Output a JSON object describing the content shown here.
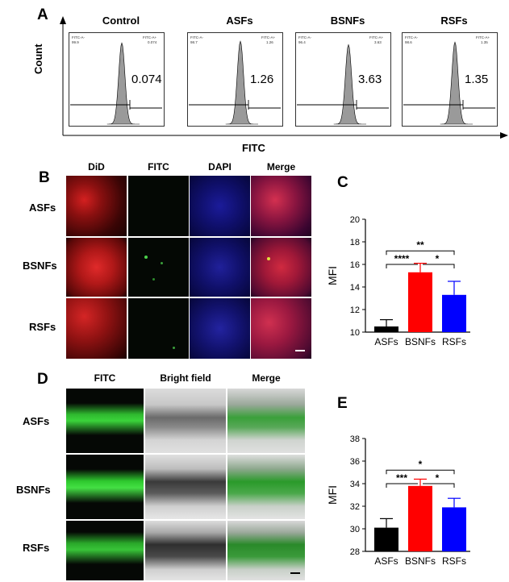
{
  "panel_a": {
    "letter": "A",
    "ylabel": "Count",
    "xlabel": "FITC",
    "gate_left": "FITC-A-",
    "gate_right": "FITC-A+",
    "histograms": [
      {
        "title": "Control",
        "neg": "99.9",
        "pos": "0.074",
        "value": "0.074"
      },
      {
        "title": "ASFs",
        "neg": "98.7",
        "pos": "1.26",
        "value": "1.26"
      },
      {
        "title": "BSNFs",
        "neg": "96.4",
        "pos": "3.63",
        "value": "3.63"
      },
      {
        "title": "RSFs",
        "neg": "98.6",
        "pos": "1.35",
        "value": "1.35"
      }
    ]
  },
  "panel_b": {
    "letter": "B",
    "columns": [
      "DiD",
      "FITC",
      "DAPI",
      "Merge"
    ],
    "rows": [
      "ASFs",
      "BSNFs",
      "RSFs"
    ]
  },
  "panel_c": {
    "letter": "C",
    "sig": [
      "**",
      "****",
      "*"
    ]
  },
  "panel_d": {
    "letter": "D",
    "columns": [
      "FITC",
      "Bright field",
      "Merge"
    ],
    "rows": [
      "ASFs",
      "BSNFs",
      "RSFs"
    ]
  },
  "panel_e": {
    "letter": "E",
    "sig": [
      "*",
      "***",
      "*"
    ]
  },
  "chart_data": [
    {
      "type": "bar",
      "panel": "C",
      "categories": [
        "ASFs",
        "BSNFs",
        "RSFs"
      ],
      "values": [
        10.5,
        15.3,
        13.3
      ],
      "errors": [
        0.6,
        0.8,
        1.2
      ],
      "colors": [
        "#000000",
        "#ff0000",
        "#0000ff"
      ],
      "ylabel": "MFI",
      "ylim": [
        10,
        20
      ],
      "yticks": [
        "10",
        "12",
        "14",
        "16",
        "18",
        "20"
      ]
    },
    {
      "type": "bar",
      "panel": "E",
      "categories": [
        "ASFs",
        "BSNFs",
        "RSFs"
      ],
      "values": [
        30.1,
        33.8,
        31.9
      ],
      "errors": [
        0.8,
        0.6,
        0.8
      ],
      "colors": [
        "#000000",
        "#ff0000",
        "#0000ff"
      ],
      "ylabel": "MFI",
      "ylim": [
        28,
        38
      ],
      "yticks": [
        "28",
        "30",
        "32",
        "34",
        "36",
        "38"
      ]
    }
  ]
}
